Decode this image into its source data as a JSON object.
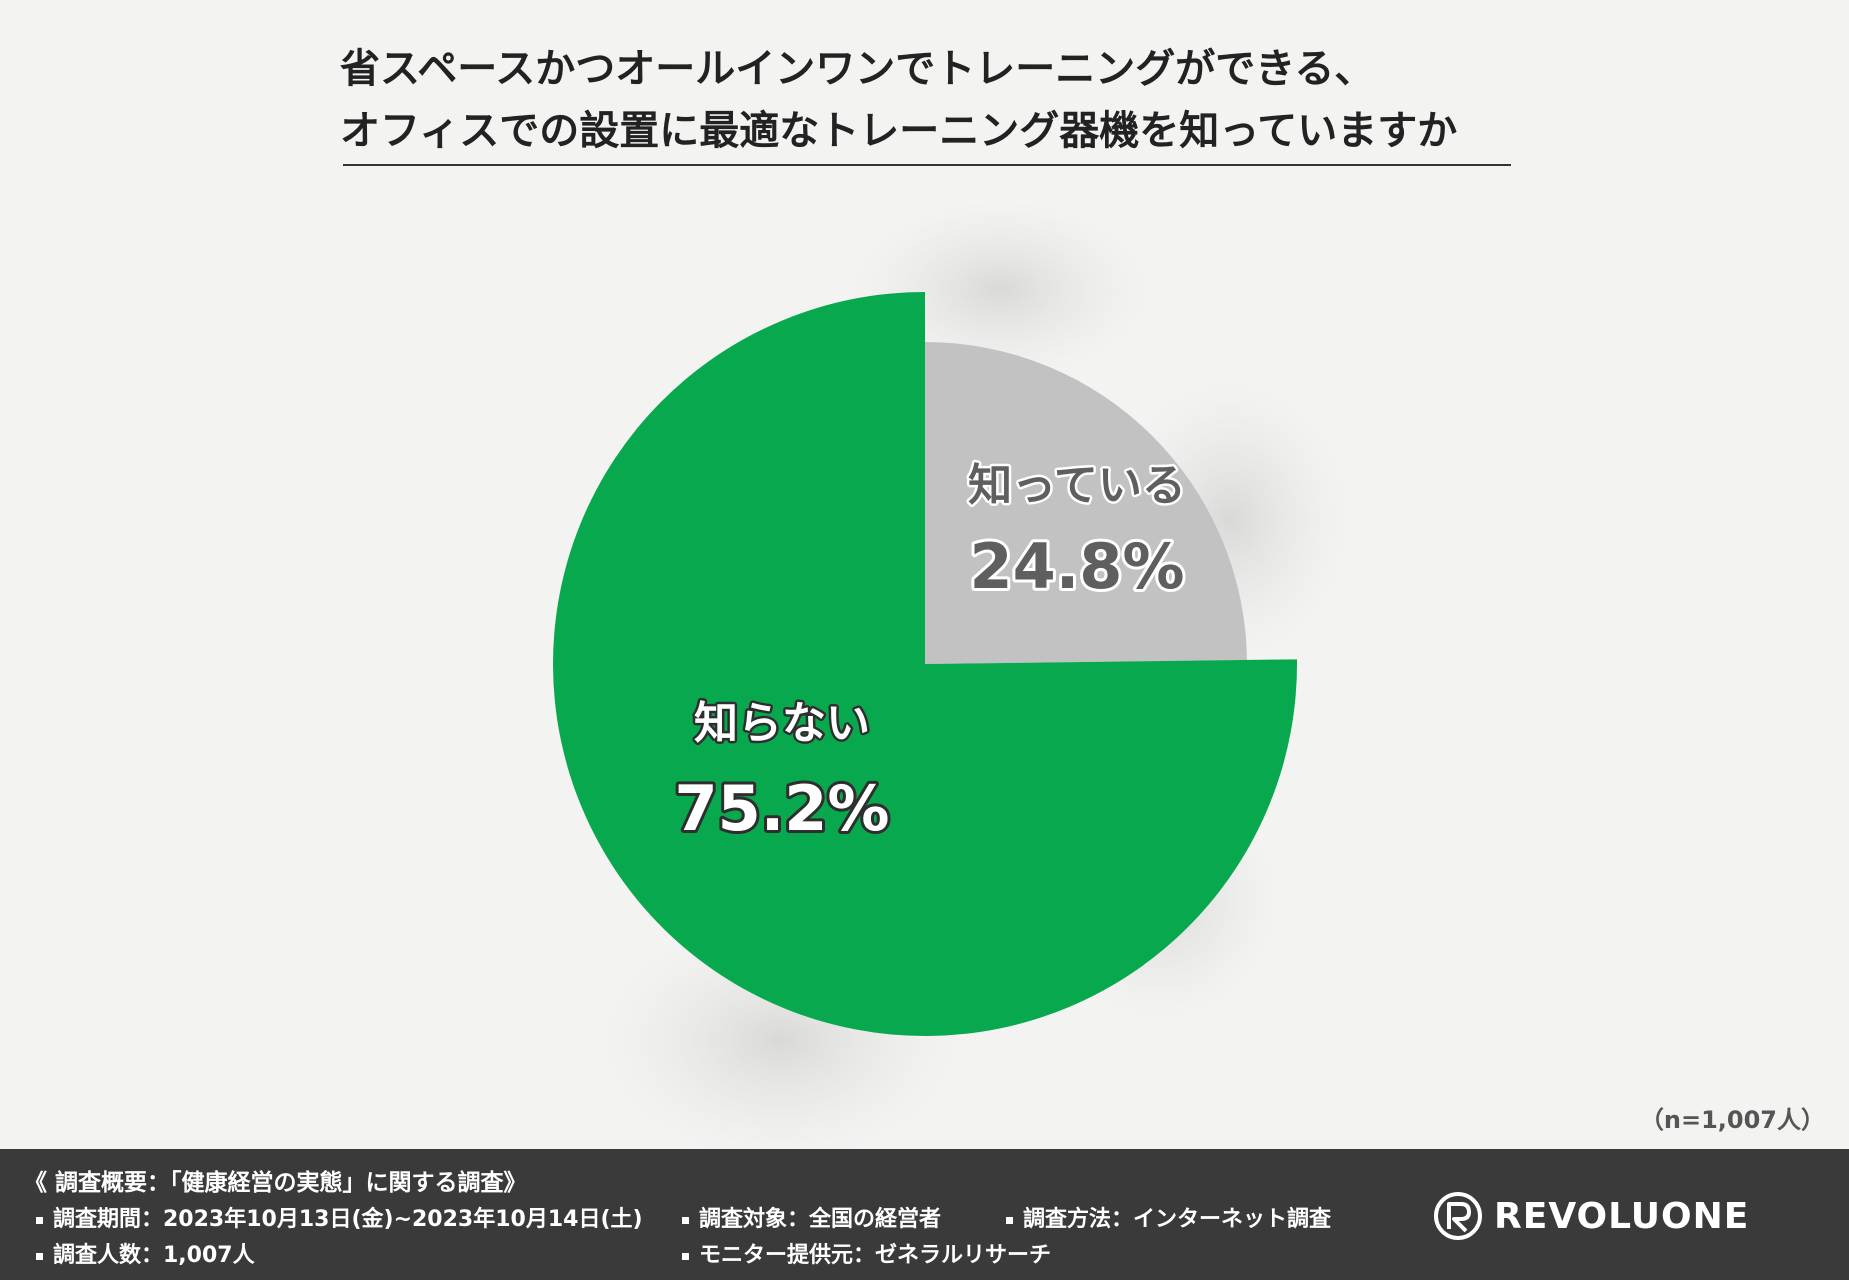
{
  "title": {
    "line1": "省スペースかつオールインワンでトレーニングができる、",
    "line2": "オフィスでの設置に最適なトレーニング器機を知っていますか"
  },
  "chart_data": {
    "type": "pie",
    "slices": [
      {
        "label": "知っている",
        "value": 24.8,
        "display": "24.8%",
        "color": "#c2c2c2"
      },
      {
        "label": "知らない",
        "value": 75.2,
        "display": "75.2%",
        "color": "#08a84f"
      }
    ],
    "note": "（n=1,007人）"
  },
  "footer": {
    "survey_title": "《 調査概要：「健康経営の実態」に関する調査》",
    "period": "調査期間：2023年10月13日(金)~2023年10月14日(土)",
    "target": "調査対象：全国の経営者",
    "method": "調査方法：インターネット調査",
    "count": "調査人数：1,007人",
    "monitor": "モニター提供元：ゼネラルリサーチ",
    "logo": "REVOLUONE"
  }
}
